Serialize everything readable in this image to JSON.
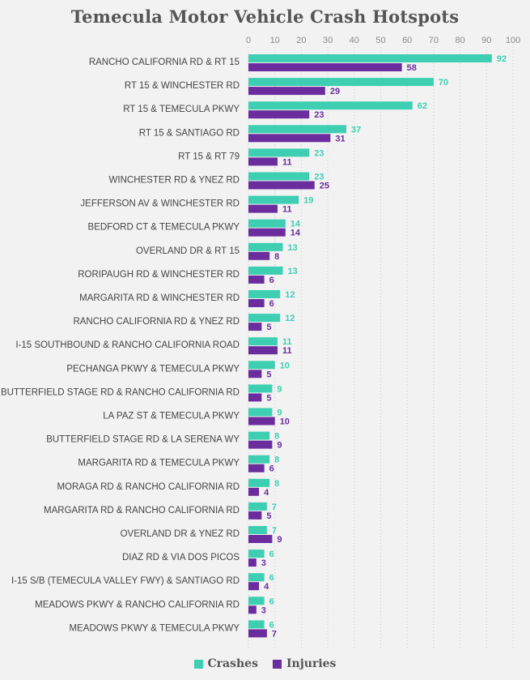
{
  "colors": {
    "crashes": "#3ecfb2",
    "injuries": "#6b2d9e",
    "grid": "#c9c9c9"
  },
  "chart_data": {
    "type": "bar",
    "orientation": "horizontal",
    "title": "Temecula Motor Vehicle Crash Hotspots",
    "xlim": [
      0,
      100
    ],
    "xticks": [
      0,
      10,
      20,
      30,
      40,
      50,
      60,
      70,
      80,
      90,
      100
    ],
    "grid": "vertical dotted",
    "legend_position": "bottom",
    "categories": [
      "RANCHO CALIFORNIA RD & RT 15",
      "RT 15 & WINCHESTER RD",
      "RT 15 & TEMECULA PKWY",
      "RT 15 & SANTIAGO RD",
      "RT 15 & RT 79",
      "WINCHESTER RD & YNEZ RD",
      "JEFFERSON AV & WINCHESTER RD",
      "BEDFORD CT & TEMECULA PKWY",
      "OVERLAND DR & RT 15",
      "RORIPAUGH RD & WINCHESTER RD",
      "MARGARITA RD & WINCHESTER RD",
      "RANCHO CALIFORNIA RD & YNEZ RD",
      "I-15 SOUTHBOUND & RANCHO CALIFORNIA ROAD",
      "PECHANGA PKWY & TEMECULA PKWY",
      "BUTTERFIELD STAGE RD & RANCHO CALIFORNIA RD",
      "LA PAZ ST & TEMECULA PKWY",
      "BUTTERFIELD STAGE RD & LA SERENA WY",
      "MARGARITA RD & TEMECULA PKWY",
      "MORAGA RD & RANCHO CALIFORNIA RD",
      "MARGARITA RD & RANCHO CALIFORNIA RD",
      "OVERLAND DR & YNEZ RD",
      "DIAZ RD & VIA DOS PICOS",
      "I-15 S/B (TEMECULA VALLEY FWY) & SANTIAGO RD",
      "MEADOWS PKWY & RANCHO CALIFORNIA RD",
      "MEADOWS PKWY & TEMECULA PKWY"
    ],
    "series": [
      {
        "name": "Crashes",
        "values": [
          92,
          70,
          62,
          37,
          23,
          23,
          19,
          14,
          13,
          13,
          12,
          12,
          11,
          10,
          9,
          9,
          8,
          8,
          8,
          7,
          7,
          6,
          6,
          6,
          6
        ]
      },
      {
        "name": "Injuries",
        "values": [
          58,
          29,
          23,
          31,
          11,
          25,
          11,
          14,
          8,
          6,
          6,
          5,
          11,
          5,
          5,
          10,
          9,
          6,
          4,
          5,
          9,
          3,
          4,
          3,
          7
        ]
      }
    ]
  }
}
